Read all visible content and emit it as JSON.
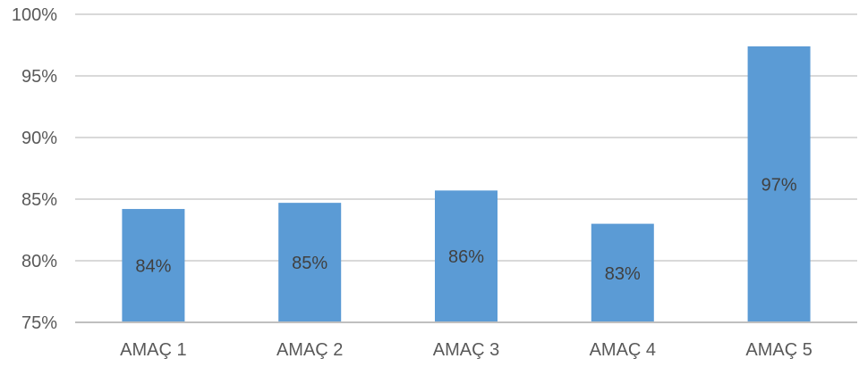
{
  "chart_data": {
    "type": "bar",
    "categories": [
      "AMAÇ 1",
      "AMAÇ 2",
      "AMAÇ 3",
      "AMAÇ 4",
      "AMAÇ 5"
    ],
    "values": [
      84.2,
      84.7,
      85.7,
      83.0,
      97.4
    ],
    "data_labels": [
      "84%",
      "85%",
      "86%",
      "83%",
      "97%"
    ],
    "title": "",
    "xlabel": "",
    "ylabel": "",
    "ylim": [
      75,
      100
    ],
    "yticks": [
      75,
      80,
      85,
      90,
      95,
      100
    ],
    "ytick_labels": [
      "75%",
      "80%",
      "85%",
      "90%",
      "95%",
      "100%"
    ],
    "grid": true,
    "legend": "none",
    "colors": {
      "bar": "#5b9bd5",
      "grid": "#d9d9d9",
      "axis": "#bfbfbf",
      "tick_text": "#595959",
      "data_label_text": "#404040"
    }
  }
}
